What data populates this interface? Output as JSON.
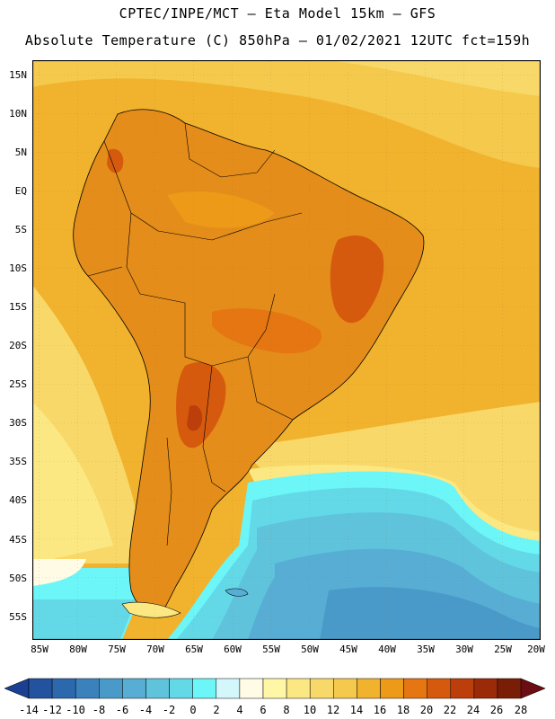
{
  "title": {
    "line1": "CPTEC/INPE/MCT —  Eta Model 15km — GFS",
    "line2": "Absolute Temperature (C) 850hPa — 01/02/2021 12UTC fct=159h"
  },
  "lat_labels": [
    "15N",
    "10N",
    "5N",
    "EQ",
    "5S",
    "10S",
    "15S",
    "20S",
    "25S",
    "30S",
    "35S",
    "40S",
    "45S",
    "50S",
    "55S"
  ],
  "lon_labels": [
    "85W",
    "80W",
    "75W",
    "70W",
    "65W",
    "60W",
    "55W",
    "50W",
    "45W",
    "40W",
    "35W",
    "30W",
    "25W",
    "20W"
  ],
  "colorbar": {
    "labels": [
      "-14",
      "-12",
      "-10",
      "-8",
      "-6",
      "-4",
      "-2",
      "0",
      "2",
      "4",
      "6",
      "8",
      "10",
      "12",
      "14",
      "16",
      "18",
      "20",
      "22",
      "24",
      "26",
      "28"
    ],
    "colors": [
      "#1b3f91",
      "#23529f",
      "#2c68ad",
      "#3b82bd",
      "#4a9ac9",
      "#57add4",
      "#5fc3dc",
      "#63d9e8",
      "#6cf6f8",
      "#d3f7fb",
      "#fffbe5",
      "#fff7a6",
      "#fbe883",
      "#f8d868",
      "#f5c94c",
      "#f1b22d",
      "#ec9a17",
      "#e57612",
      "#d65a0e",
      "#bc3f0b",
      "#9b2a08",
      "#7a1d06",
      "#6b0d12"
    ]
  },
  "colors": {
    "cold_sea": "#46a7d3",
    "cool_sea": "#63d9e8",
    "warm_land": "#e48d1a",
    "hot_land": "#c9580f",
    "tropical_sea": "#f0ba3e"
  }
}
